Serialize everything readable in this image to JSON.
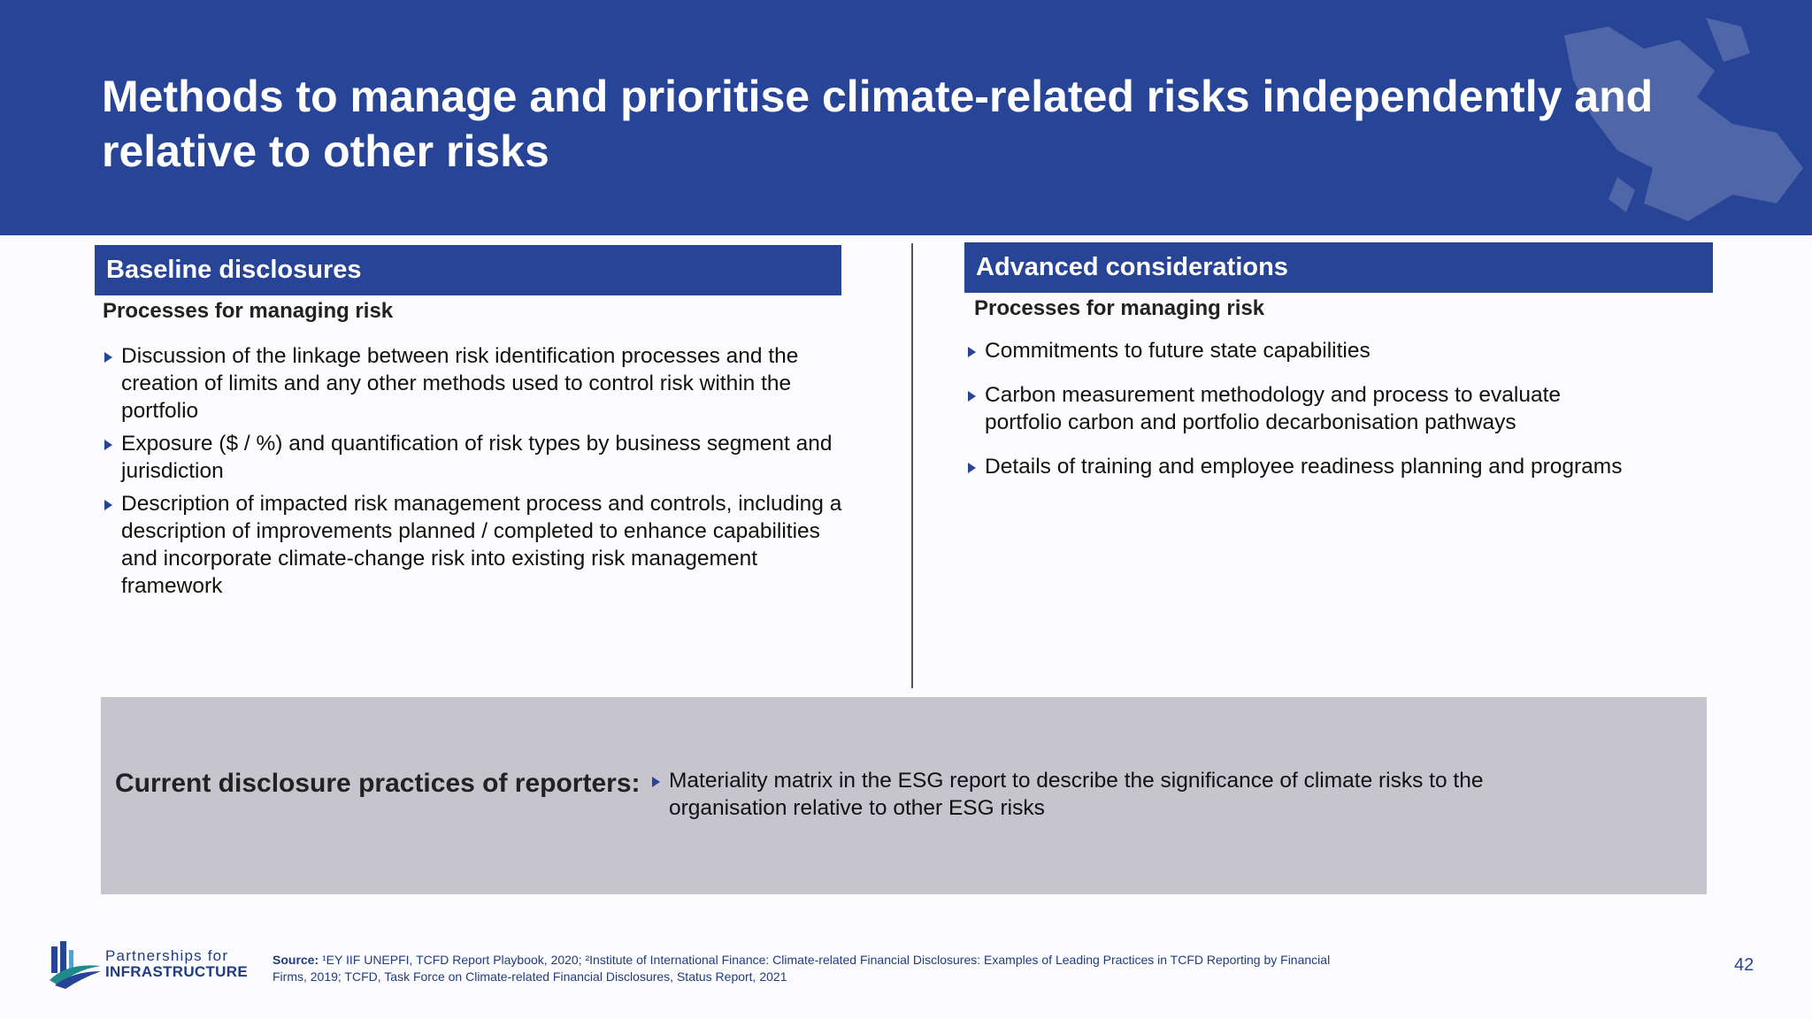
{
  "title": "Methods to manage and prioritise climate-related risks independently and relative to other risks",
  "baseline": {
    "heading": "Baseline disclosures",
    "subheading": "Processes for managing risk",
    "bullets": [
      "Discussion of the linkage between risk identification processes and the creation of limits and any other methods used to control risk within the portfolio",
      "Exposure ($ / %) and quantification of risk types by business segment and jurisdiction",
      "Description of impacted risk management process and controls, including a description of improvements planned / completed to enhance capabilities and incorporate climate-change risk into existing risk management framework"
    ]
  },
  "advanced": {
    "heading": "Advanced considerations",
    "subheading": "Processes for managing risk",
    "bullets": [
      "Commitments to future state capabilities",
      "Carbon measurement methodology and process to evaluate portfolio carbon and portfolio decarbonisation pathways",
      "Details of training and employee readiness planning and programs"
    ]
  },
  "practices": {
    "label": "Current disclosure practices of reporters:",
    "bullets": [
      "Materiality matrix in the ESG report to describe the significance of climate risks to the organisation relative to other ESG risks"
    ]
  },
  "footer": {
    "logo_line1": "Partnerships for",
    "logo_line2": "INFRASTRUCTURE",
    "source_label": "Source:",
    "source_text": "¹EY IIF UNEPFI, TCFD Report Playbook, 2020; ²Institute of International Finance: Climate-related Financial Disclosures: Examples of Leading Practices in TCFD Reporting by Financial Firms, 2019; TCFD, Task Force on Climate-related Financial Disclosures, Status Report, 2021",
    "page_number": "42"
  },
  "colors": {
    "brand_blue": "#284496",
    "practice_bg": "#c6c5cd",
    "logo_teal": "#1f8a8a"
  },
  "icons": {
    "bullet": "right-triangle-icon",
    "header_decoration": "world-map-icon",
    "logo": "partnerships-logo-icon"
  }
}
